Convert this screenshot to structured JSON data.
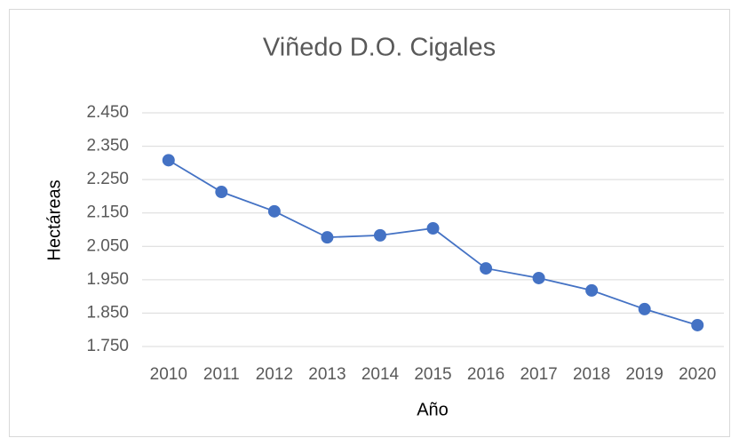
{
  "chart_data": {
    "type": "line",
    "title": "Viñedo D.O. Cigales",
    "x_label": "Año",
    "y_label": "Hectáreas",
    "categories": [
      "2010",
      "2011",
      "2012",
      "2013",
      "2014",
      "2015",
      "2016",
      "2017",
      "2018",
      "2019",
      "2020"
    ],
    "values": [
      2308,
      2213,
      2155,
      2077,
      2083,
      2104,
      1984,
      1955,
      1918,
      1862,
      1814
    ],
    "color": "#4472c4",
    "ylim": [
      1750,
      2450
    ],
    "yticks": [
      {
        "value": 1750,
        "label": "1.750"
      },
      {
        "value": 1850,
        "label": "1.850"
      },
      {
        "value": 1950,
        "label": "1.950"
      },
      {
        "value": 2050,
        "label": "2.050"
      },
      {
        "value": 2150,
        "label": "2.150"
      },
      {
        "value": 2250,
        "label": "2.250"
      },
      {
        "value": 2350,
        "label": "2.350"
      },
      {
        "value": 2450,
        "label": "2.450"
      }
    ],
    "grid": true
  }
}
